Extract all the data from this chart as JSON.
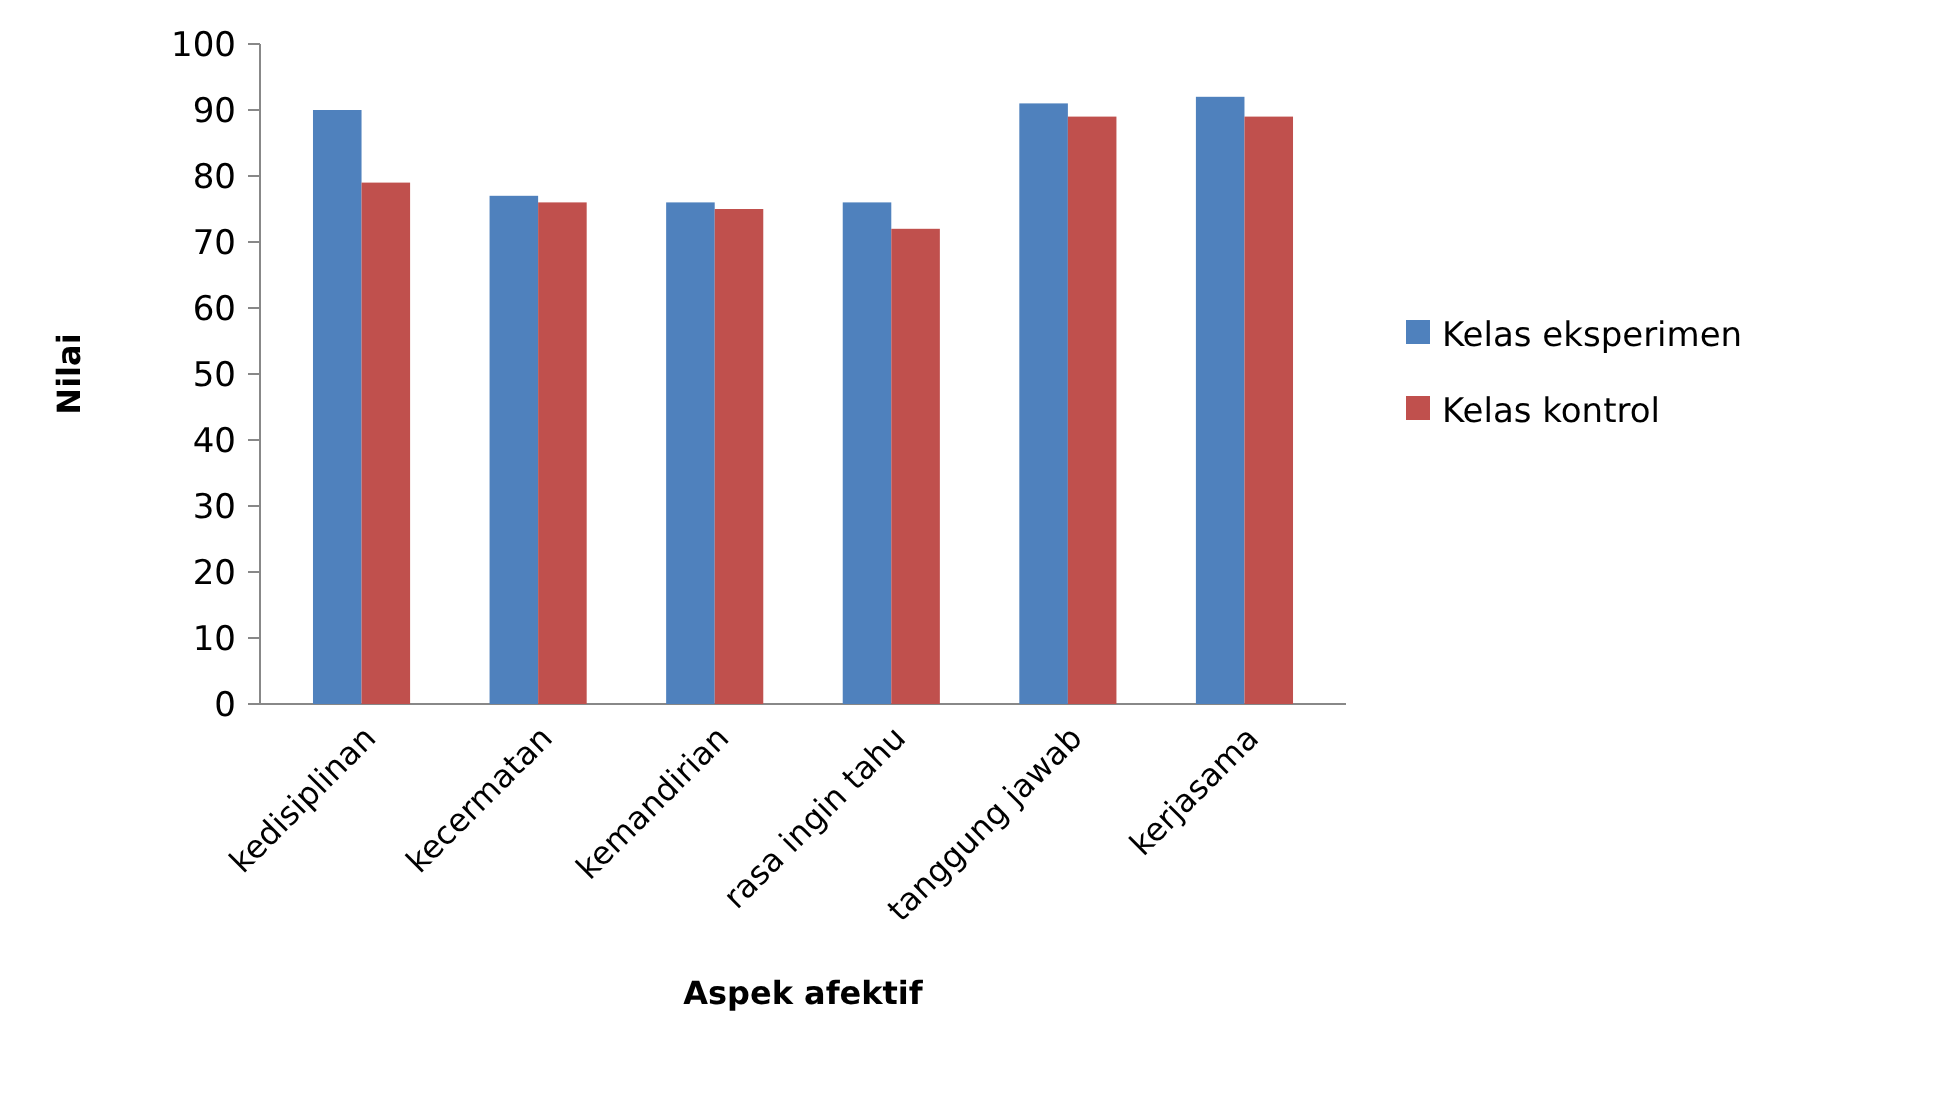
{
  "chart_data": {
    "type": "bar",
    "xlabel": "Aspek afektif",
    "ylabel": "Nilai",
    "categories": [
      "kedisiplinan",
      "kecermatan",
      "kemandirian",
      "rasa ingin tahu",
      "tanggung jawab",
      "kerjasama"
    ],
    "series": [
      {
        "name": "Kelas eksperimen",
        "color": "#4f81bd",
        "values": [
          90,
          77,
          76,
          76,
          91,
          92
        ]
      },
      {
        "name": "Kelas kontrol",
        "color": "#c0504d",
        "values": [
          79,
          76,
          75,
          72,
          89,
          89
        ]
      }
    ],
    "ylim": [
      0,
      100
    ],
    "yticks": [
      0,
      10,
      20,
      30,
      40,
      50,
      60,
      70,
      80,
      90,
      100
    ],
    "grid": false,
    "legend": "right"
  }
}
